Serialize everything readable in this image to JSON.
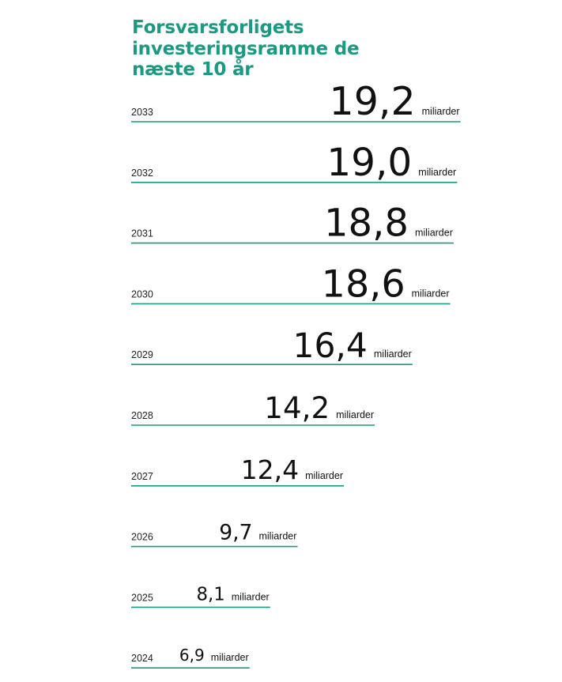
{
  "title": "Forsvarsforligets investeringsramme de næste 10 år",
  "unit_label": "miliarder",
  "accent_color": "#1a9a82",
  "chart_data": {
    "type": "bar",
    "title": "Forsvarsforligets investeringsramme de næste 10 år",
    "orientation": "horizontal",
    "categories": [
      "2033",
      "2032",
      "2031",
      "2030",
      "2029",
      "2028",
      "2027",
      "2026",
      "2025",
      "2024"
    ],
    "values": [
      19.2,
      19.0,
      18.8,
      18.6,
      16.4,
      14.2,
      12.4,
      9.7,
      8.1,
      6.9
    ],
    "value_labels": [
      "19,2",
      "19,0",
      "18,8",
      "18,6",
      "16,4",
      "14,2",
      "12,4",
      "9,7",
      "8,1",
      "6,9"
    ],
    "unit": "miliarder",
    "xlabel": "",
    "ylabel": "",
    "grid": false,
    "legend": "none"
  }
}
